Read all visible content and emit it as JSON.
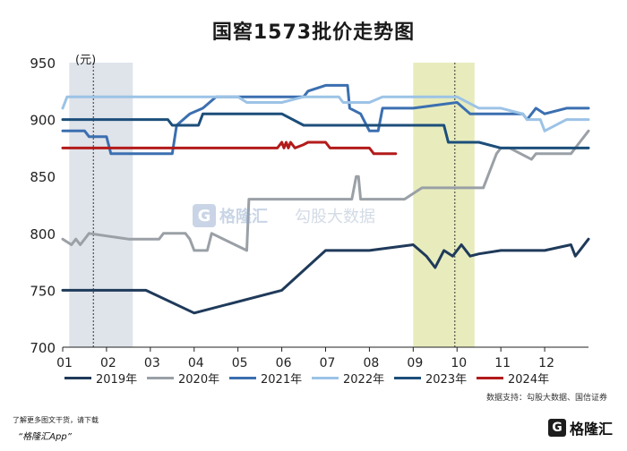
{
  "title": "国窖1573批价走势图",
  "source": "数据支持：勾股大数据、国信证券",
  "footer": {
    "note": "了解更多图文干货，请下载",
    "brand": "“格隆汇App”",
    "logo_mark": "G",
    "logo_text": "格隆汇"
  },
  "watermark": {
    "mark": "G",
    "name": "格隆汇",
    "name2": "勾股大数据"
  },
  "colors": {
    "2019": "#1f3a5a",
    "2020": "#9aa0a6",
    "2021": "#3b6fb0",
    "2022": "#9cc3e6",
    "2023": "#1c4e7a",
    "2024": "#b31b1b",
    "shade_gray": "#dfe3ea",
    "shade_green": "#e8ecbc"
  },
  "chart_data": {
    "type": "line",
    "title": "国窖1573批价走势图",
    "yunit": "(元)",
    "xlabel": "",
    "ylabel": "",
    "ylim": [
      700,
      950
    ],
    "yticks": [
      700,
      750,
      800,
      850,
      900,
      950
    ],
    "xlim": [
      1,
      13
    ],
    "xticks": [
      {
        "v": 1,
        "label": "01"
      },
      {
        "v": 2,
        "label": "02"
      },
      {
        "v": 3,
        "label": "03"
      },
      {
        "v": 4,
        "label": "04"
      },
      {
        "v": 5,
        "label": "05"
      },
      {
        "v": 6,
        "label": "06"
      },
      {
        "v": 7,
        "label": "07"
      },
      {
        "v": 8,
        "label": "08"
      },
      {
        "v": 9,
        "label": "09"
      },
      {
        "v": 10,
        "label": "10"
      },
      {
        "v": 11,
        "label": "11"
      },
      {
        "v": 12,
        "label": "12"
      }
    ],
    "shaded_regions": [
      {
        "x0": 1.15,
        "x1": 2.6,
        "color": "shade_gray"
      },
      {
        "x0": 9.0,
        "x1": 10.4,
        "color": "shade_green"
      }
    ],
    "vlines": [
      1.7,
      9.95
    ],
    "legend_position": "bottom",
    "grid": false,
    "series": [
      {
        "name": "2019年",
        "color": "2019",
        "x": [
          1,
          2.9,
          4,
          6,
          7,
          8,
          9,
          9.3,
          9.5,
          9.7,
          9.9,
          10.1,
          10.3,
          10.5,
          11,
          12,
          12.6,
          12.7,
          12.8,
          13
        ],
        "y": [
          750,
          750,
          730,
          750,
          785,
          785,
          790,
          780,
          770,
          785,
          780,
          790,
          780,
          782,
          785,
          785,
          790,
          780,
          785,
          795
        ]
      },
      {
        "name": "2020年",
        "color": "2020",
        "x": [
          1,
          1.2,
          1.3,
          1.4,
          1.6,
          2.5,
          3.0,
          3.2,
          3.3,
          3.8,
          3.9,
          4.0,
          4.3,
          4.4,
          5.2,
          5.25,
          7.6,
          7.7,
          7.75,
          7.8,
          8.8,
          9.2,
          10.6,
          10.7,
          10.8,
          10.9,
          11.0,
          11.2,
          11.7,
          11.8,
          12.0,
          12.6,
          12.8,
          13
        ],
        "y": [
          795,
          790,
          795,
          790,
          800,
          795,
          795,
          795,
          800,
          800,
          795,
          785,
          785,
          800,
          785,
          830,
          830,
          850,
          850,
          830,
          830,
          840,
          840,
          850,
          860,
          870,
          875,
          875,
          865,
          870,
          870,
          870,
          880,
          890
        ]
      },
      {
        "name": "2021年",
        "color": "2021",
        "x": [
          1,
          1.5,
          1.6,
          2.0,
          2.1,
          3.0,
          3.5,
          3.6,
          3.9,
          4.2,
          4.5,
          6.5,
          6.6,
          7.0,
          7.5,
          7.55,
          7.8,
          8.0,
          8.2,
          8.3,
          9.0,
          10.0,
          10.3,
          11.0,
          11.5,
          11.6,
          11.8,
          12.0,
          12.5,
          13
        ],
        "y": [
          890,
          890,
          885,
          885,
          870,
          870,
          870,
          895,
          905,
          910,
          920,
          920,
          925,
          930,
          930,
          910,
          905,
          890,
          890,
          910,
          910,
          915,
          905,
          905,
          905,
          900,
          910,
          905,
          910,
          910
        ]
      },
      {
        "name": "2022年",
        "color": "2022",
        "x": [
          1,
          1.1,
          2.0,
          2.2,
          3.0,
          5.0,
          5.2,
          6.0,
          6.5,
          7.0,
          7.3,
          7.4,
          8.0,
          8.3,
          9.0,
          10.0,
          10.5,
          11.0,
          11.5,
          11.6,
          11.9,
          12.0,
          12.5,
          13
        ],
        "y": [
          910,
          920,
          920,
          920,
          920,
          920,
          915,
          915,
          920,
          920,
          920,
          915,
          915,
          920,
          920,
          920,
          910,
          910,
          905,
          900,
          900,
          890,
          900,
          900
        ]
      },
      {
        "name": "2023年",
        "color": "2023",
        "x": [
          1,
          3.4,
          3.5,
          4.1,
          4.2,
          6.0,
          6.5,
          7.0,
          7.5,
          8.0,
          9.7,
          9.8,
          10.4,
          10.5,
          11.0,
          13
        ],
        "y": [
          900,
          900,
          895,
          895,
          905,
          905,
          895,
          895,
          895,
          895,
          895,
          880,
          880,
          880,
          875,
          875
        ]
      },
      {
        "name": "2024年",
        "color": "2024",
        "x": [
          1,
          5.0,
          5.9,
          6.0,
          6.05,
          6.1,
          6.15,
          6.2,
          6.3,
          6.5,
          6.6,
          7.0,
          7.1,
          8.0,
          8.1,
          8.6
        ],
        "y": [
          875,
          875,
          875,
          880,
          875,
          880,
          875,
          880,
          875,
          878,
          880,
          880,
          875,
          875,
          870,
          870
        ]
      }
    ]
  }
}
